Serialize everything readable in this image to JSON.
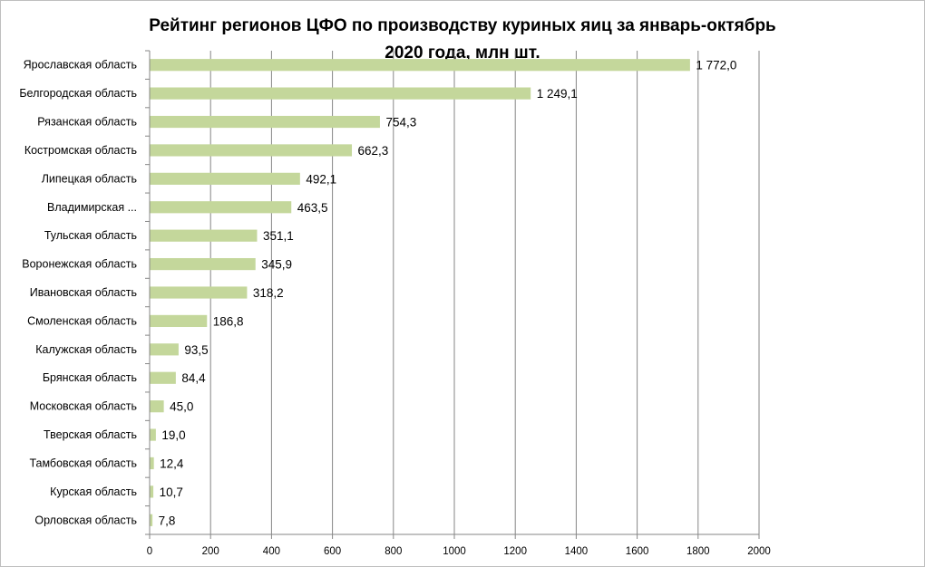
{
  "chart_data": {
    "type": "bar",
    "orientation": "horizontal",
    "title_lines": [
      "Рейтинг регионов ЦФО по производству куриных яиц  за январь-октябрь",
      "2020 года, млн шт."
    ],
    "categories": [
      "Ярославская  область",
      "Белгородская  область",
      "Рязанская  область",
      "Костромская  область",
      "Липецкая  область",
      "Владимирская ...",
      "Тульская  область",
      "Воронежская  область",
      "Ивановская  область",
      "Смоленская  область",
      "Калужская  область",
      "Брянская  область",
      "Московская  область",
      "Тверская  область",
      "Тамбовская  область",
      "Курская  область",
      "Орловская  область"
    ],
    "values": [
      1772.0,
      1249.1,
      754.3,
      662.3,
      492.1,
      463.5,
      351.1,
      345.9,
      318.2,
      186.8,
      93.5,
      84.4,
      45.0,
      19.0,
      12.4,
      10.7,
      7.8
    ],
    "data_labels": [
      "1 772,0",
      "1 249,1",
      "754,3",
      "662,3",
      "492,1",
      "463,5",
      "351,1",
      "345,9",
      "318,2",
      "186,8",
      "93,5",
      "84,4",
      "45,0",
      "19,0",
      "12,4",
      "10,7",
      "7,8"
    ],
    "x_ticks": [
      "0",
      "200",
      "400",
      "600",
      "800",
      "1000",
      "1200",
      "1400",
      "1600",
      "1800",
      "2000"
    ],
    "xlim": [
      0,
      2000
    ],
    "grid": true,
    "bar_color": "#c4d79b",
    "gridline_color": "#868686"
  }
}
